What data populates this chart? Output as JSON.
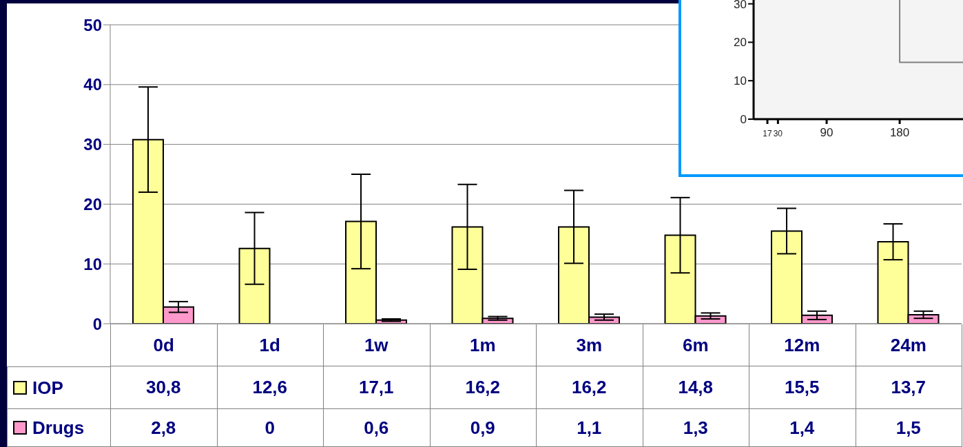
{
  "chart_data": [
    {
      "type": "bar",
      "categories": [
        "0d",
        "1d",
        "1w",
        "1m",
        "3m",
        "6m",
        "12m",
        "24m"
      ],
      "series": [
        {
          "name": "IOP",
          "color": "#ffff99",
          "values": [
            30.8,
            12.6,
            17.1,
            16.2,
            16.2,
            14.8,
            15.5,
            13.7
          ],
          "errors": [
            8.8,
            6,
            7.9,
            7.1,
            6.1,
            6.3,
            3.8,
            3
          ],
          "value_labels": [
            "30,8",
            "12,6",
            "17,1",
            "16,2",
            "16,2",
            "14,8",
            "15,5",
            "13,7"
          ]
        },
        {
          "name": "Drugs",
          "color": "#ff99cc",
          "values": [
            2.8,
            0,
            0.6,
            0.9,
            1.1,
            1.3,
            1.4,
            1.5
          ],
          "errors": [
            0.9,
            null,
            0.2,
            0.3,
            0.5,
            0.5,
            0.7,
            0.6
          ],
          "value_labels": [
            "2,8",
            "0",
            "0,6",
            "0,9",
            "1,1",
            "1,3",
            "1,4",
            "1,5"
          ]
        }
      ],
      "ylim": [
        0,
        50
      ],
      "yticks": [
        0,
        10,
        20,
        30,
        40,
        50
      ],
      "grid": "y",
      "legend": "bottom"
    },
    {
      "type": "step",
      "x": [
        180,
        258
      ],
      "series": [
        {
          "color": "#808080",
          "values": [
            31,
            14.8
          ]
        }
      ],
      "xlim": [
        0,
        258
      ],
      "xticks": [
        17,
        30,
        90,
        180
      ],
      "ylim": [
        0,
        31
      ],
      "yticks": [
        0,
        10,
        20,
        30
      ],
      "grid": false
    }
  ]
}
